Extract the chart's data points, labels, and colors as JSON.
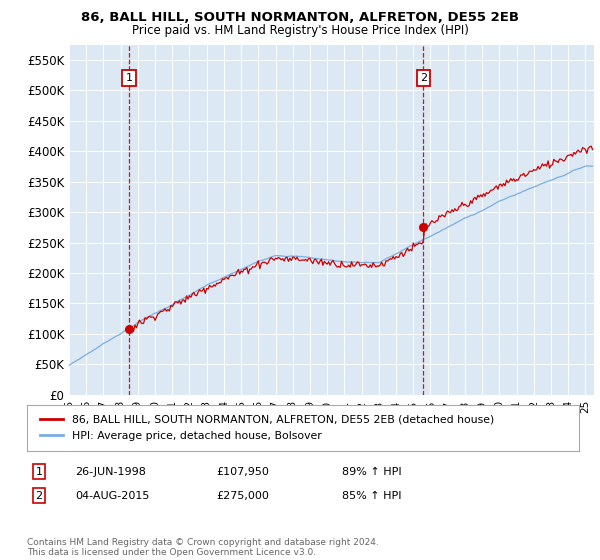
{
  "title1": "86, BALL HILL, SOUTH NORMANTON, ALFRETON, DE55 2EB",
  "title2": "Price paid vs. HM Land Registry's House Price Index (HPI)",
  "bg_color": "#dce9f5",
  "red_color": "#cc0000",
  "blue_color": "#7aade0",
  "legend1": "86, BALL HILL, SOUTH NORMANTON, ALFRETON, DE55 2EB (detached house)",
  "legend2": "HPI: Average price, detached house, Bolsover",
  "footer": "Contains HM Land Registry data © Crown copyright and database right 2024.\nThis data is licensed under the Open Government Licence v3.0.",
  "ylim": [
    0,
    575000
  ],
  "yticks": [
    0,
    50000,
    100000,
    150000,
    200000,
    250000,
    300000,
    350000,
    400000,
    450000,
    500000,
    550000
  ],
  "ytick_labels": [
    "£0",
    "£50K",
    "£100K",
    "£150K",
    "£200K",
    "£250K",
    "£300K",
    "£350K",
    "£400K",
    "£450K",
    "£500K",
    "£550K"
  ],
  "sale1_year": 1998.49,
  "sale1_price": 107950,
  "sale2_year": 2015.59,
  "sale2_price": 275000,
  "xmin": 1995.0,
  "xmax": 2025.5
}
